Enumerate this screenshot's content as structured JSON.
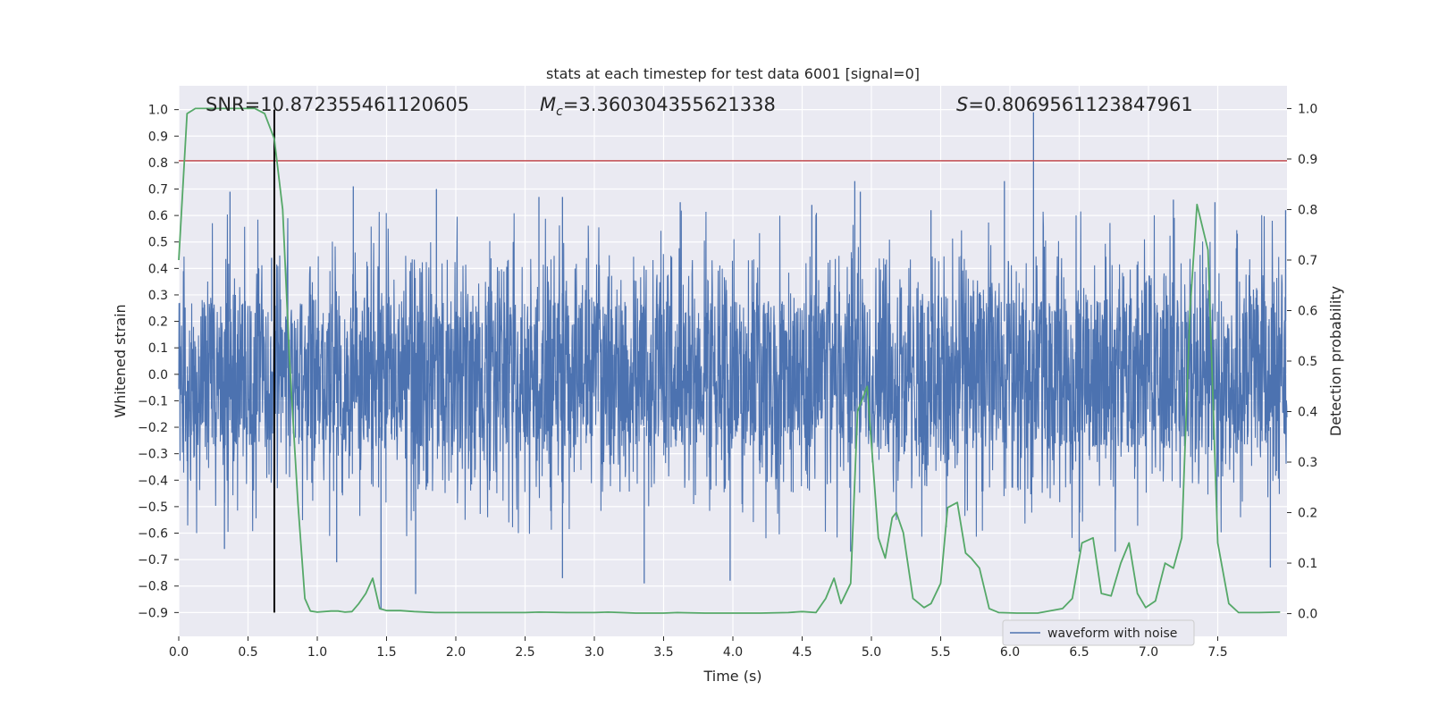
{
  "chart_data": {
    "type": "line",
    "title": "stats at each timestep for test data 6001 [signal=0]",
    "xlabel": "Time (s)",
    "ylabel": "Whitened strain",
    "ylabel_right": "Detection probability",
    "xlim": [
      0.0,
      8.0
    ],
    "ylim": [
      -0.99,
      1.09
    ],
    "ylim_right": [
      -0.045,
      1.045
    ],
    "x_ticks": [
      0.0,
      0.5,
      1.0,
      1.5,
      2.0,
      2.5,
      3.0,
      3.5,
      4.0,
      4.5,
      5.0,
      5.5,
      6.0,
      6.5,
      7.0,
      7.5
    ],
    "x_tick_labels": [
      "0.0",
      "0.5",
      "1.0",
      "1.5",
      "2.0",
      "2.5",
      "3.0",
      "3.5",
      "4.0",
      "4.5",
      "5.0",
      "5.5",
      "6.0",
      "6.5",
      "7.0",
      "7.5"
    ],
    "y_ticks": [
      1.0,
      0.9,
      0.8,
      0.7,
      0.6,
      0.5,
      0.4,
      0.3,
      0.2,
      0.1,
      0.0,
      -0.1,
      -0.2,
      -0.3,
      -0.4,
      -0.5,
      -0.6,
      -0.7,
      -0.8,
      -0.9
    ],
    "y_tick_labels": [
      "1.0",
      "0.9",
      "0.8",
      "0.7",
      "0.6",
      "0.5",
      "0.4",
      "0.3",
      "0.2",
      "0.1",
      "0.0",
      "−0.1",
      "−0.2",
      "−0.3",
      "−0.4",
      "−0.5",
      "−0.6",
      "−0.7",
      "−0.8",
      "−0.9"
    ],
    "y_right_ticks": [
      1.0,
      0.9,
      0.8,
      0.7,
      0.6,
      0.5,
      0.4,
      0.3,
      0.2,
      0.1,
      0.0
    ],
    "y_right_tick_labels": [
      "1.0",
      "0.9",
      "0.8",
      "0.7",
      "0.6",
      "0.5",
      "0.4",
      "0.3",
      "0.2",
      "0.1",
      "0.0"
    ],
    "grid": true,
    "legend": {
      "position": "lower-right",
      "entries": [
        "waveform with noise"
      ]
    },
    "annotations": {
      "snr": "SNR=10.872355461120605",
      "mc_symbol": "M",
      "mc_sub": "c",
      "mc_value": "=3.360304355621338",
      "s_symbol": "S",
      "s_value": "=0.8069561123847961"
    },
    "hline": {
      "y": 0.8069561123847961,
      "color": "#c44e52"
    },
    "vline": {
      "x": 0.69,
      "y_range": [
        -0.9,
        1.0
      ],
      "color": "#000000"
    },
    "series": [
      {
        "name": "waveform with noise",
        "axis": "left",
        "color": "#4c72b0",
        "style": "dense noise trace",
        "core_band": [
          -0.3,
          0.25
        ],
        "typical_band": [
          -0.5,
          0.45
        ],
        "peaks_high": [
          [
            0.37,
            0.69
          ],
          [
            0.67,
            0.44
          ],
          [
            1.26,
            0.71
          ],
          [
            1.86,
            0.7
          ],
          [
            2.6,
            0.67
          ],
          [
            2.77,
            0.67
          ],
          [
            3.62,
            0.65
          ],
          [
            4.57,
            0.64
          ],
          [
            4.88,
            0.73
          ],
          [
            4.92,
            0.69
          ],
          [
            5.43,
            0.62
          ],
          [
            5.96,
            0.73
          ],
          [
            6.17,
            0.99
          ],
          [
            7.18,
            0.66
          ],
          [
            7.48,
            0.65
          ],
          [
            7.99,
            0.62
          ]
        ],
        "peaks_low": [
          [
            0.33,
            -0.66
          ],
          [
            1.14,
            -0.71
          ],
          [
            1.46,
            -0.89
          ],
          [
            1.71,
            -0.83
          ],
          [
            2.77,
            -0.77
          ],
          [
            3.36,
            -0.79
          ],
          [
            3.98,
            -0.78
          ],
          [
            4.85,
            -0.67
          ],
          [
            6.5,
            -0.67
          ],
          [
            6.76,
            -0.67
          ],
          [
            7.88,
            -0.73
          ]
        ]
      },
      {
        "name": "",
        "axis": "right",
        "color": "#55a868",
        "x": [
          0.0,
          0.06,
          0.12,
          0.2,
          0.4,
          0.55,
          0.62,
          0.69,
          0.75,
          0.8,
          0.86,
          0.91,
          0.95,
          1.0,
          1.1,
          1.15,
          1.2,
          1.25,
          1.3,
          1.35,
          1.4,
          1.45,
          1.5,
          1.6,
          1.7,
          1.85,
          2.0,
          2.3,
          2.5,
          2.6,
          2.8,
          3.0,
          3.1,
          3.3,
          3.5,
          3.6,
          3.8,
          4.0,
          4.2,
          4.4,
          4.5,
          4.6,
          4.67,
          4.73,
          4.78,
          4.85,
          4.9,
          4.97,
          5.05,
          5.1,
          5.15,
          5.18,
          5.23,
          5.3,
          5.38,
          5.43,
          5.5,
          5.55,
          5.62,
          5.68,
          5.72,
          5.78,
          5.85,
          5.92,
          6.05,
          6.2,
          6.38,
          6.45,
          6.52,
          6.6,
          6.66,
          6.73,
          6.8,
          6.86,
          6.92,
          6.98,
          7.05,
          7.12,
          7.18,
          7.24,
          7.3,
          7.35,
          7.43,
          7.5,
          7.58,
          7.65,
          7.8,
          7.95
        ],
        "y": [
          0.7,
          0.99,
          1.0,
          1.0,
          1.0,
          1.0,
          0.99,
          0.94,
          0.8,
          0.5,
          0.22,
          0.03,
          0.005,
          0.003,
          0.005,
          0.005,
          0.003,
          0.004,
          0.02,
          0.04,
          0.07,
          0.01,
          0.006,
          0.006,
          0.004,
          0.002,
          0.002,
          0.002,
          0.002,
          0.003,
          0.002,
          0.002,
          0.003,
          0.001,
          0.001,
          0.002,
          0.001,
          0.001,
          0.001,
          0.002,
          0.004,
          0.002,
          0.03,
          0.07,
          0.02,
          0.06,
          0.4,
          0.45,
          0.15,
          0.11,
          0.19,
          0.2,
          0.16,
          0.03,
          0.012,
          0.02,
          0.06,
          0.21,
          0.22,
          0.12,
          0.11,
          0.09,
          0.01,
          0.002,
          0.001,
          0.001,
          0.01,
          0.03,
          0.14,
          0.15,
          0.04,
          0.035,
          0.1,
          0.14,
          0.04,
          0.012,
          0.025,
          0.1,
          0.09,
          0.15,
          0.6,
          0.81,
          0.72,
          0.14,
          0.02,
          0.002,
          0.002,
          0.003
        ]
      }
    ]
  }
}
